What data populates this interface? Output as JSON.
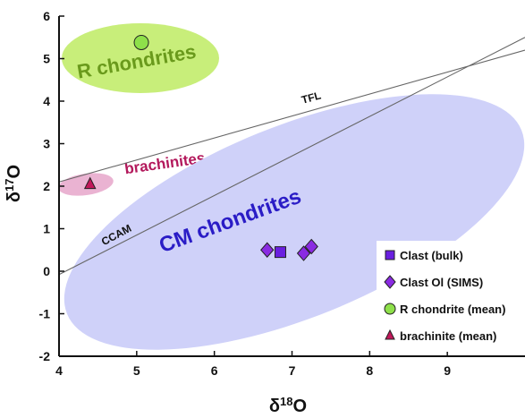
{
  "chart_data": {
    "type": "scatter",
    "xlabel": "δ",
    "xlabel_sup": "18",
    "xlabel_suffix": "O",
    "ylabel": "δ",
    "ylabel_sup": "17",
    "ylabel_suffix": "O",
    "xlim": [
      4,
      10
    ],
    "ylim": [
      -2,
      6
    ],
    "x_ticks": [
      "4",
      "5",
      "6",
      "7",
      "8",
      "9"
    ],
    "y_ticks": [
      "-2",
      "-1",
      "0",
      "1",
      "2",
      "3",
      "4",
      "5",
      "6"
    ],
    "grid": false,
    "legend_position": "bottom-right",
    "regions": [
      {
        "label": "R chondrites",
        "color": "#c8ee7a",
        "label_color": "#6a9a1c"
      },
      {
        "label": "brachinites",
        "color": "#eab3d2",
        "label_color": "#b3195c"
      },
      {
        "label": "CM chondrites",
        "color": "#cfd1f9",
        "label_color": "#2a1cc6"
      }
    ],
    "lines": [
      {
        "label": "TFL",
        "points": [
          [
            4.0,
            2.1
          ],
          [
            10.0,
            5.2
          ]
        ]
      },
      {
        "label": "CCAM",
        "points": [
          [
            4.0,
            -0.08
          ],
          [
            10.0,
            5.5
          ]
        ]
      }
    ],
    "series": [
      {
        "name": "Clast (bulk)",
        "marker": "square",
        "color": "#6a1fe0",
        "points": [
          [
            6.85,
            0.45
          ]
        ]
      },
      {
        "name": "Clast Ol (SIMS)",
        "marker": "diamond",
        "color": "#8a2be2",
        "points": [
          [
            6.68,
            0.5
          ],
          [
            7.15,
            0.42
          ],
          [
            7.25,
            0.58
          ]
        ]
      },
      {
        "name": "R chondrite (mean)",
        "marker": "circle",
        "color": "#8ee04a",
        "points": [
          [
            5.06,
            5.38
          ]
        ]
      },
      {
        "name": "brachinite (mean)",
        "marker": "triangle",
        "color": "#c2185b",
        "points": [
          [
            4.4,
            2.05
          ]
        ]
      }
    ]
  }
}
